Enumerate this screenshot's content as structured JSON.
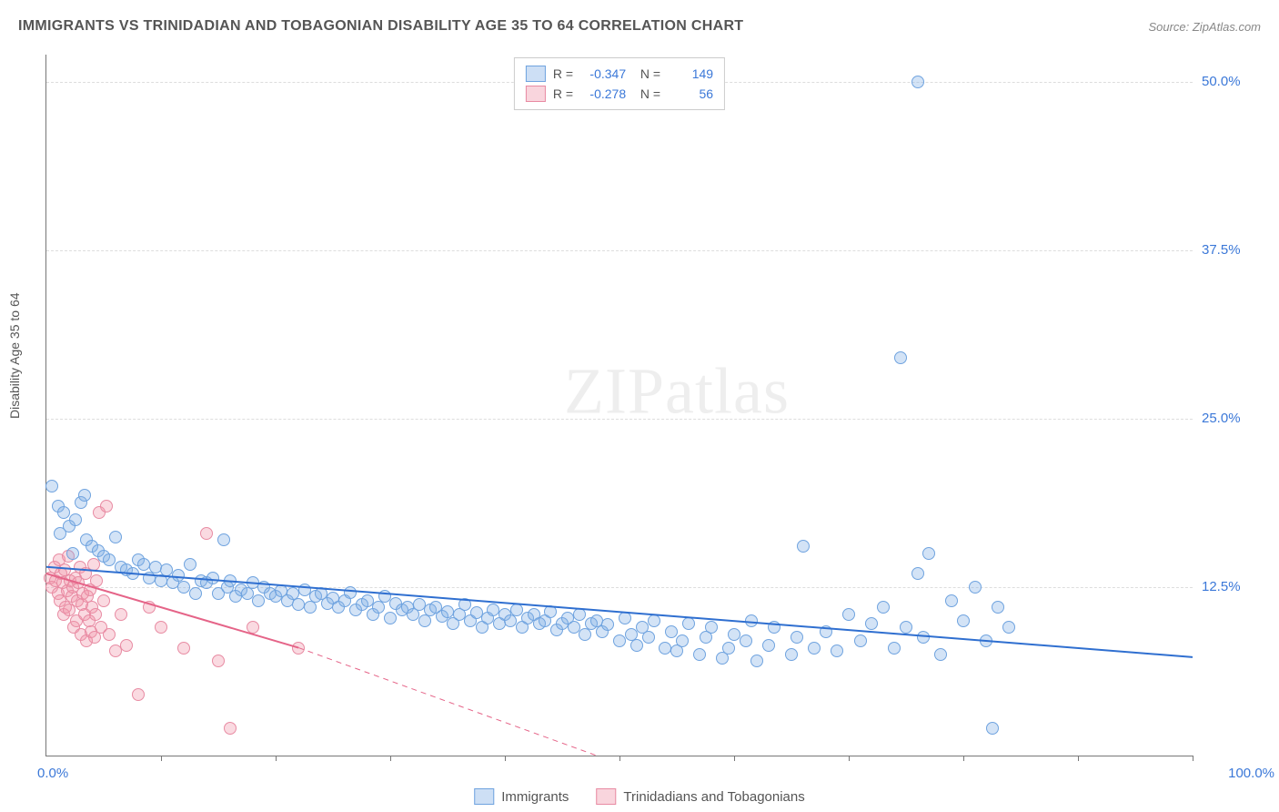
{
  "header": {
    "title": "IMMIGRANTS VS TRINIDADIAN AND TOBAGONIAN DISABILITY AGE 35 TO 64 CORRELATION CHART",
    "source": "Source: ZipAtlas.com"
  },
  "yaxis_label": "Disability Age 35 to 64",
  "watermark": {
    "zip": "ZIP",
    "atlas": "atlas"
  },
  "chart": {
    "type": "scatter",
    "xlim": [
      0,
      100
    ],
    "ylim": [
      0,
      52
    ],
    "x_min_label": "0.0%",
    "x_max_label": "100.0%",
    "ytick_values": [
      12.5,
      25.0,
      37.5,
      50.0
    ],
    "ytick_labels": [
      "12.5%",
      "25.0%",
      "37.5%",
      "50.0%"
    ],
    "xtick_values": [
      10,
      20,
      30,
      40,
      50,
      60,
      70,
      80,
      90,
      100
    ],
    "grid_color": "#dddddd",
    "background_color": "#ffffff",
    "axis_color": "#777777",
    "marker_radius": 7,
    "series": {
      "immigrants": {
        "label": "Immigrants",
        "fill": "rgba(130,175,230,0.35)",
        "stroke": "#6fa3df",
        "line_color": "#2f6fd0",
        "line_width": 2,
        "R": "-0.347",
        "N": "149",
        "regression": {
          "x1": 0,
          "y1": 14.0,
          "x2": 100,
          "y2": 7.3
        },
        "points": [
          [
            0.5,
            20.0
          ],
          [
            1.0,
            18.5
          ],
          [
            1.2,
            16.5
          ],
          [
            1.5,
            18.0
          ],
          [
            2.0,
            17.0
          ],
          [
            2.3,
            15.0
          ],
          [
            2.5,
            17.5
          ],
          [
            3.0,
            18.8
          ],
          [
            3.3,
            19.3
          ],
          [
            3.5,
            16.0
          ],
          [
            4.0,
            15.5
          ],
          [
            4.5,
            15.2
          ],
          [
            5.0,
            14.8
          ],
          [
            5.5,
            14.5
          ],
          [
            6.0,
            16.2
          ],
          [
            6.5,
            14.0
          ],
          [
            7.0,
            13.8
          ],
          [
            7.5,
            13.5
          ],
          [
            8.0,
            14.5
          ],
          [
            8.5,
            14.2
          ],
          [
            9.0,
            13.2
          ],
          [
            9.5,
            14.0
          ],
          [
            10.0,
            13.0
          ],
          [
            10.5,
            13.8
          ],
          [
            11.0,
            12.8
          ],
          [
            11.5,
            13.4
          ],
          [
            12.0,
            12.5
          ],
          [
            12.5,
            14.2
          ],
          [
            13.0,
            12.0
          ],
          [
            15.5,
            16.0
          ],
          [
            13.5,
            13.0
          ],
          [
            14.0,
            12.8
          ],
          [
            14.5,
            13.2
          ],
          [
            15.0,
            12.0
          ],
          [
            15.8,
            12.5
          ],
          [
            16.0,
            13.0
          ],
          [
            16.5,
            11.8
          ],
          [
            17.0,
            12.3
          ],
          [
            17.5,
            12.0
          ],
          [
            18.0,
            12.8
          ],
          [
            18.5,
            11.5
          ],
          [
            19.0,
            12.5
          ],
          [
            19.5,
            12.0
          ],
          [
            20.0,
            11.8
          ],
          [
            20.5,
            12.2
          ],
          [
            21.0,
            11.5
          ],
          [
            21.5,
            12.0
          ],
          [
            22.0,
            11.2
          ],
          [
            22.5,
            12.3
          ],
          [
            23.0,
            11.0
          ],
          [
            23.5,
            11.8
          ],
          [
            24.0,
            12.0
          ],
          [
            24.5,
            11.3
          ],
          [
            25.0,
            11.7
          ],
          [
            25.5,
            11.0
          ],
          [
            26.0,
            11.5
          ],
          [
            26.5,
            12.1
          ],
          [
            27.0,
            10.8
          ],
          [
            27.5,
            11.2
          ],
          [
            28.0,
            11.5
          ],
          [
            28.5,
            10.5
          ],
          [
            29.0,
            11.0
          ],
          [
            29.5,
            11.8
          ],
          [
            30.0,
            10.2
          ],
          [
            30.5,
            11.3
          ],
          [
            31.0,
            10.8
          ],
          [
            31.5,
            11.0
          ],
          [
            32.0,
            10.5
          ],
          [
            32.5,
            11.2
          ],
          [
            33.0,
            10.0
          ],
          [
            33.5,
            10.8
          ],
          [
            34.0,
            11.0
          ],
          [
            34.5,
            10.3
          ],
          [
            35.0,
            10.7
          ],
          [
            35.5,
            9.8
          ],
          [
            36.0,
            10.5
          ],
          [
            36.5,
            11.2
          ],
          [
            37.0,
            10.0
          ],
          [
            37.5,
            10.6
          ],
          [
            38.0,
            9.5
          ],
          [
            38.5,
            10.2
          ],
          [
            39.0,
            10.8
          ],
          [
            39.5,
            9.8
          ],
          [
            40.0,
            10.5
          ],
          [
            40.5,
            10.0
          ],
          [
            41.0,
            10.8
          ],
          [
            41.5,
            9.5
          ],
          [
            42.0,
            10.2
          ],
          [
            42.5,
            10.5
          ],
          [
            43.0,
            9.8
          ],
          [
            43.5,
            10.0
          ],
          [
            44.0,
            10.7
          ],
          [
            44.5,
            9.3
          ],
          [
            45.0,
            9.8
          ],
          [
            45.5,
            10.2
          ],
          [
            46.0,
            9.5
          ],
          [
            46.5,
            10.5
          ],
          [
            47.0,
            9.0
          ],
          [
            47.5,
            9.8
          ],
          [
            48.0,
            10.0
          ],
          [
            48.5,
            9.2
          ],
          [
            49.0,
            9.7
          ],
          [
            50.0,
            8.5
          ],
          [
            50.5,
            10.2
          ],
          [
            51.0,
            9.0
          ],
          [
            51.5,
            8.2
          ],
          [
            52.0,
            9.5
          ],
          [
            52.5,
            8.8
          ],
          [
            53.0,
            10.0
          ],
          [
            54.0,
            8.0
          ],
          [
            54.5,
            9.2
          ],
          [
            55.0,
            7.8
          ],
          [
            55.5,
            8.5
          ],
          [
            56.0,
            9.8
          ],
          [
            57.0,
            7.5
          ],
          [
            57.5,
            8.8
          ],
          [
            58.0,
            9.5
          ],
          [
            59.0,
            7.2
          ],
          [
            59.5,
            8.0
          ],
          [
            60.0,
            9.0
          ],
          [
            61.0,
            8.5
          ],
          [
            61.5,
            10.0
          ],
          [
            62.0,
            7.0
          ],
          [
            63.0,
            8.2
          ],
          [
            63.5,
            9.5
          ],
          [
            65.0,
            7.5
          ],
          [
            65.5,
            8.8
          ],
          [
            66.0,
            15.5
          ],
          [
            67.0,
            8.0
          ],
          [
            68.0,
            9.2
          ],
          [
            69.0,
            7.8
          ],
          [
            70.0,
            10.5
          ],
          [
            71.0,
            8.5
          ],
          [
            72.0,
            9.8
          ],
          [
            73.0,
            11.0
          ],
          [
            74.0,
            8.0
          ],
          [
            75.0,
            9.5
          ],
          [
            76.0,
            13.5
          ],
          [
            76.5,
            8.8
          ],
          [
            77.0,
            15.0
          ],
          [
            78.0,
            7.5
          ],
          [
            79.0,
            11.5
          ],
          [
            80.0,
            10.0
          ],
          [
            81.0,
            12.5
          ],
          [
            82.0,
            8.5
          ],
          [
            82.5,
            2.0
          ],
          [
            83.0,
            11.0
          ],
          [
            84.0,
            9.5
          ],
          [
            76.0,
            50.0
          ],
          [
            74.5,
            29.5
          ]
        ]
      },
      "trinidad": {
        "label": "Trinidadians and Tobagonians",
        "fill": "rgba(240,150,170,0.35)",
        "stroke": "#e88ba3",
        "line_color": "#e56488",
        "line_width": 2,
        "R": "-0.278",
        "N": "56",
        "regression_solid": {
          "x1": 0,
          "y1": 13.5,
          "x2": 22,
          "y2": 8.0
        },
        "regression_dashed": {
          "x1": 22,
          "y1": 8.0,
          "x2": 48,
          "y2": 0.0
        },
        "points": [
          [
            0.3,
            13.2
          ],
          [
            0.5,
            12.5
          ],
          [
            0.7,
            14.0
          ],
          [
            0.8,
            13.0
          ],
          [
            1.0,
            12.0
          ],
          [
            1.1,
            14.5
          ],
          [
            1.2,
            11.5
          ],
          [
            1.3,
            13.5
          ],
          [
            1.4,
            12.8
          ],
          [
            1.5,
            10.5
          ],
          [
            1.6,
            13.8
          ],
          [
            1.7,
            11.0
          ],
          [
            1.8,
            12.2
          ],
          [
            1.9,
            14.8
          ],
          [
            2.0,
            10.8
          ],
          [
            2.1,
            13.0
          ],
          [
            2.2,
            11.8
          ],
          [
            2.3,
            12.5
          ],
          [
            2.4,
            9.5
          ],
          [
            2.5,
            13.2
          ],
          [
            2.6,
            10.0
          ],
          [
            2.7,
            11.5
          ],
          [
            2.8,
            12.8
          ],
          [
            2.9,
            14.0
          ],
          [
            3.0,
            9.0
          ],
          [
            3.1,
            11.2
          ],
          [
            3.2,
            12.0
          ],
          [
            3.3,
            10.5
          ],
          [
            3.4,
            13.5
          ],
          [
            3.5,
            8.5
          ],
          [
            3.6,
            11.8
          ],
          [
            3.7,
            10.0
          ],
          [
            3.8,
            12.3
          ],
          [
            3.9,
            9.2
          ],
          [
            4.0,
            11.0
          ],
          [
            4.1,
            14.2
          ],
          [
            4.2,
            8.8
          ],
          [
            4.3,
            10.5
          ],
          [
            4.4,
            13.0
          ],
          [
            4.6,
            18.0
          ],
          [
            4.8,
            9.5
          ],
          [
            5.0,
            11.5
          ],
          [
            5.2,
            18.5
          ],
          [
            5.5,
            9.0
          ],
          [
            6.0,
            7.8
          ],
          [
            6.5,
            10.5
          ],
          [
            7.0,
            8.2
          ],
          [
            8.0,
            4.5
          ],
          [
            9.0,
            11.0
          ],
          [
            10.0,
            9.5
          ],
          [
            12.0,
            8.0
          ],
          [
            14.0,
            16.5
          ],
          [
            15.0,
            7.0
          ],
          [
            16.0,
            2.0
          ],
          [
            18.0,
            9.5
          ],
          [
            22.0,
            8.0
          ]
        ]
      }
    }
  },
  "legend_bottom": {
    "immigrants": "Immigrants",
    "trinidad": "Trinidadians and Tobagonians"
  }
}
